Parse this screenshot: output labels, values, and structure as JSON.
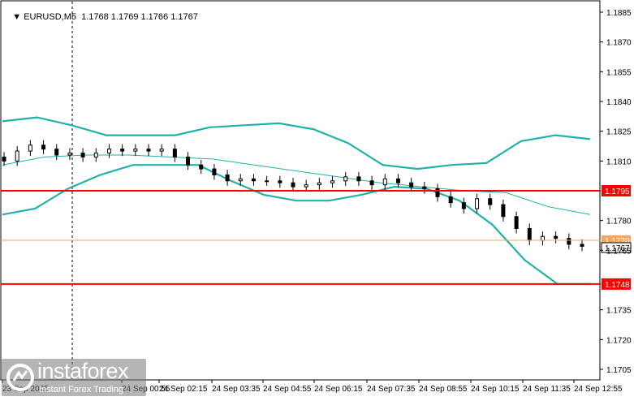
{
  "header": {
    "symbol": "EURUSD,M5",
    "ohlc": "1.1768 1.1769 1.1766 1.1767"
  },
  "price_axis": {
    "ticks": [
      "1.1885",
      "1.1870",
      "1.1855",
      "1.1840",
      "1.1825",
      "1.1810",
      "1.1780",
      "1.1765",
      "1.1735",
      "1.1720",
      "1.1705"
    ]
  },
  "time_axis": {
    "ticks": [
      "23 Sep 2025",
      "24 Sep 00:55",
      "24 Sep 02:15",
      "24 Sep 03:35",
      "24 Sep 04:55",
      "24 Sep 06:15",
      "24 Sep 07:35",
      "24 Sep 08:55",
      "24 Sep 10:15",
      "24 Sep 11:35",
      "24 Sep 12:55"
    ]
  },
  "levels": [
    {
      "price": "1.1795",
      "color": "#ff0000"
    },
    {
      "price": "1.1748",
      "color": "#ff0000"
    }
  ],
  "current_price": {
    "label": "1.1767",
    "color": "#000000"
  },
  "last_line": {
    "label": "1.1770",
    "color": "#f4a460"
  },
  "watermark": {
    "brand": "instaforex",
    "tagline": "Instant Forex Trading"
  },
  "colors": {
    "band": "#20b2aa",
    "level": "#ff0000",
    "candle": "#000000",
    "axis": "#000000",
    "grid": "#c0c0c0"
  },
  "chart_data": {
    "type": "candlestick",
    "symbol": "EURUSD",
    "timeframe": "M5",
    "y_range": [
      1.17,
      1.189
    ],
    "close_series": [
      1.181,
      1.1815,
      1.1818,
      1.1816,
      1.1813,
      1.1814,
      1.1812,
      1.1814,
      1.1816,
      1.1815,
      1.1816,
      1.1815,
      1.1816,
      1.1812,
      1.1808,
      1.1806,
      1.1803,
      1.18,
      1.1801,
      1.18,
      1.18,
      1.1799,
      1.1797,
      1.1798,
      1.1799,
      1.18,
      1.1802,
      1.18,
      1.1798,
      1.1801,
      1.1799,
      1.1797,
      1.1796,
      1.1792,
      1.1789,
      1.1786,
      1.1791,
      1.1788,
      1.1782,
      1.1776,
      1.177,
      1.1772,
      1.1771,
      1.1768,
      1.1767
    ],
    "bollinger_upper": [
      1.183,
      1.1832,
      1.1828,
      1.1823,
      1.1823,
      1.1823,
      1.1827,
      1.1828,
      1.1829,
      1.1826,
      1.1819,
      1.1808,
      1.1806,
      1.1808,
      1.1809,
      1.182,
      1.1823,
      1.1821
    ],
    "bollinger_middle": [
      1.1808,
      1.1812,
      1.1813,
      1.1813,
      1.1812,
      1.1811,
      1.1808,
      1.1805,
      1.1802,
      1.1799,
      1.1797,
      1.1795,
      1.1794,
      1.1787,
      1.1783
    ],
    "bollinger_lower": [
      1.1783,
      1.1786,
      1.1796,
      1.1803,
      1.1808,
      1.1808,
      1.1808,
      1.18,
      1.1793,
      1.179,
      1.179,
      1.1793,
      1.1797,
      1.1796,
      1.179,
      1.1778,
      1.176,
      1.1748,
      1.1748
    ],
    "horizontal_levels": [
      1.1795,
      1.1748
    ]
  }
}
